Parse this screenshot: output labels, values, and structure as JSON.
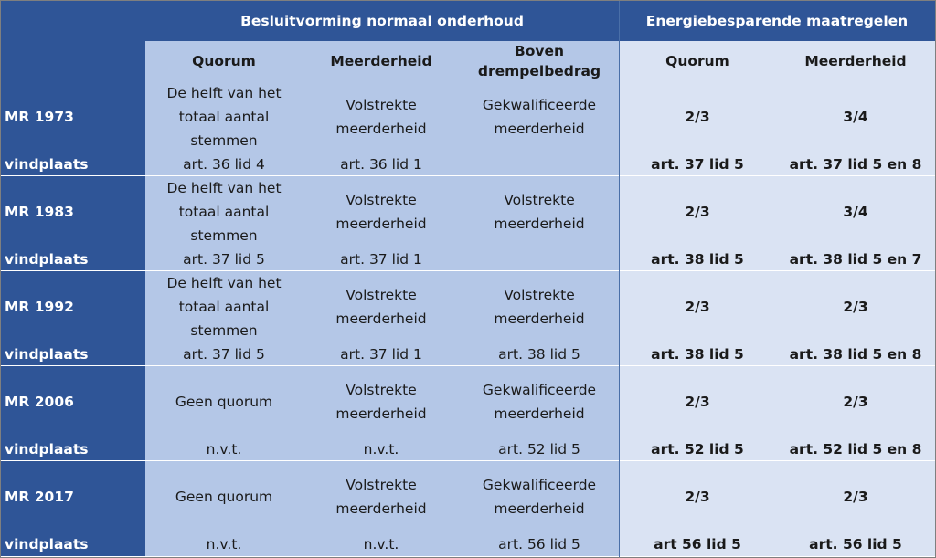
{
  "header": {
    "group_normal": "Besluitvorming normaal onderhoud",
    "group_energy": "Energiebesparende maatregelen",
    "normal_cols": [
      "Quorum",
      "Meerderheid",
      "Boven\ndrempelbedrag"
    ],
    "energy_cols": [
      "Quorum",
      "Meerderheid"
    ]
  },
  "rows": [
    {
      "label": "MR 1973",
      "source_label": "vindplaats",
      "quorum": "De helft van het\ntotaal aantal\nstemmen",
      "quorum_src": "art. 36 lid 4",
      "majority": "Volstrekte\nmeerderheid",
      "majority_src": "art. 36 lid 1",
      "threshold": "Gekwalificeerde\nmeerderheid",
      "threshold_src": "",
      "e_quorum": "2/3",
      "e_quorum_src": "art. 37 lid 5",
      "e_majority": "3/4",
      "e_majority_src": "art. 37 lid 5 en 8"
    },
    {
      "label": "MR 1983",
      "source_label": "vindplaats",
      "quorum": "De helft van het\ntotaal aantal\nstemmen",
      "quorum_src": "art. 37 lid 5",
      "majority": "Volstrekte\nmeerderheid",
      "majority_src": "art. 37 lid 1",
      "threshold": "Volstrekte\nmeerderheid",
      "threshold_src": "",
      "e_quorum": "2/3",
      "e_quorum_src": "art. 38 lid 5",
      "e_majority": "3/4",
      "e_majority_src": "art. 38 lid 5 en 7"
    },
    {
      "label": "MR 1992",
      "source_label": "vindplaats",
      "quorum": "De helft van het\ntotaal aantal\nstemmen",
      "quorum_src": "art. 37 lid 5",
      "majority": "Volstrekte\nmeerderheid",
      "majority_src": "art. 37 lid 1",
      "threshold": "Volstrekte\nmeerderheid",
      "threshold_src": "art. 38 lid 5",
      "e_quorum": "2/3",
      "e_quorum_src": "art. 38 lid 5",
      "e_majority": "2/3",
      "e_majority_src": "art. 38 lid 5 en 8"
    },
    {
      "label": "MR 2006",
      "source_label": "vindplaats",
      "quorum": "Geen quorum",
      "quorum_src": "n.v.t.",
      "majority": "Volstrekte\nmeerderheid",
      "majority_src": "n.v.t.",
      "threshold": "Gekwalificeerde\nmeerderheid",
      "threshold_src": "art. 52 lid 5",
      "e_quorum": "2/3",
      "e_quorum_src": "art. 52 lid 5",
      "e_majority": "2/3",
      "e_majority_src": "art. 52 lid 5 en 8"
    },
    {
      "label": "MR 2017",
      "source_label": "vindplaats",
      "quorum": "Geen quorum",
      "quorum_src": "n.v.t.",
      "majority": "Volstrekte\nmeerderheid",
      "majority_src": "n.v.t.",
      "threshold": "Gekwalificeerde\nmeerderheid",
      "threshold_src": "art. 56 lid 5",
      "e_quorum": "2/3",
      "e_quorum_src": "art 56 lid 5",
      "e_majority": "2/3",
      "e_majority_src": "art. 56 lid 5"
    }
  ]
}
